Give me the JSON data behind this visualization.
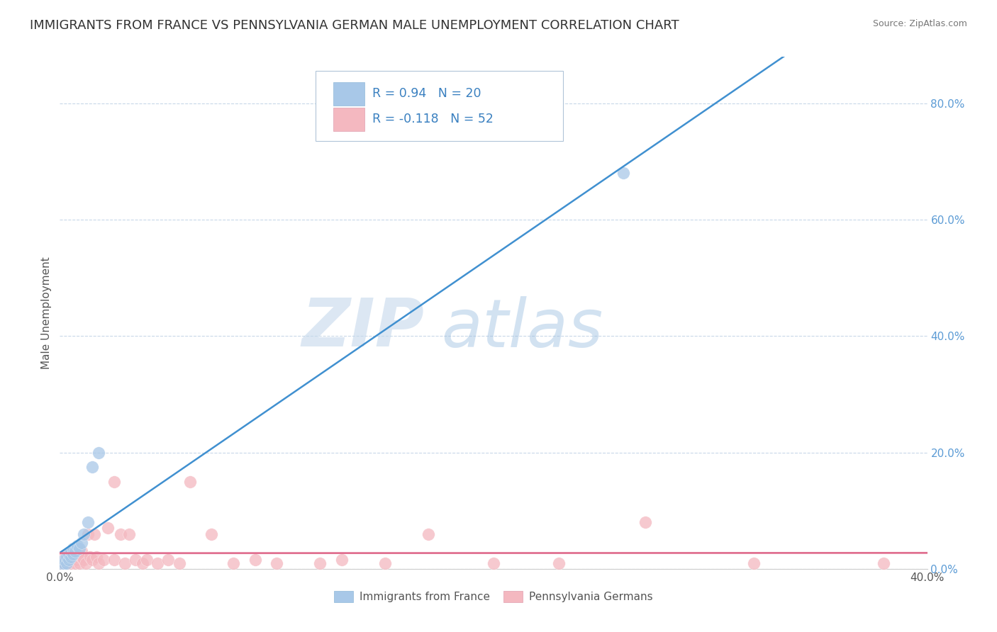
{
  "title": "IMMIGRANTS FROM FRANCE VS PENNSYLVANIA GERMAN MALE UNEMPLOYMENT CORRELATION CHART",
  "source": "Source: ZipAtlas.com",
  "ylabel": "Male Unemployment",
  "xlim": [
    0.0,
    0.4
  ],
  "ylim": [
    0.0,
    0.88
  ],
  "xtick_vals": [
    0.0,
    0.4
  ],
  "xticklabels": [
    "0.0%",
    "40.0%"
  ],
  "ytick_vals": [
    0.0,
    0.2,
    0.4,
    0.6,
    0.8
  ],
  "yticklabels_right": [
    "0.0%",
    "20.0%",
    "40.0%",
    "60.0%",
    "80.0%"
  ],
  "blue_R": 0.94,
  "blue_N": 20,
  "pink_R": -0.118,
  "pink_N": 52,
  "blue_color": "#a8c8e8",
  "pink_color": "#f4b8c0",
  "blue_line_color": "#4090d0",
  "pink_line_color": "#e07090",
  "watermark_zip": "ZIP",
  "watermark_atlas": "atlas",
  "legend_label_blue": "Immigrants from France",
  "legend_label_pink": "Pennsylvania Germans",
  "blue_scatter_x": [
    0.001,
    0.002,
    0.002,
    0.003,
    0.003,
    0.004,
    0.004,
    0.005,
    0.005,
    0.006,
    0.006,
    0.007,
    0.008,
    0.009,
    0.01,
    0.011,
    0.013,
    0.015,
    0.018,
    0.26
  ],
  "blue_scatter_y": [
    0.005,
    0.01,
    0.015,
    0.01,
    0.02,
    0.015,
    0.025,
    0.02,
    0.03,
    0.025,
    0.035,
    0.03,
    0.04,
    0.035,
    0.045,
    0.06,
    0.08,
    0.175,
    0.2,
    0.68
  ],
  "pink_scatter_x": [
    0.001,
    0.002,
    0.002,
    0.003,
    0.003,
    0.004,
    0.004,
    0.005,
    0.005,
    0.006,
    0.006,
    0.007,
    0.008,
    0.008,
    0.009,
    0.01,
    0.01,
    0.011,
    0.012,
    0.013,
    0.014,
    0.015,
    0.016,
    0.017,
    0.018,
    0.02,
    0.022,
    0.025,
    0.025,
    0.028,
    0.03,
    0.032,
    0.035,
    0.038,
    0.04,
    0.045,
    0.05,
    0.055,
    0.06,
    0.07,
    0.08,
    0.09,
    0.1,
    0.12,
    0.13,
    0.15,
    0.17,
    0.2,
    0.23,
    0.27,
    0.32,
    0.38
  ],
  "pink_scatter_y": [
    0.01,
    0.008,
    0.02,
    0.01,
    0.025,
    0.015,
    0.012,
    0.01,
    0.02,
    0.015,
    0.025,
    0.01,
    0.015,
    0.02,
    0.01,
    0.02,
    0.03,
    0.015,
    0.01,
    0.06,
    0.02,
    0.015,
    0.06,
    0.02,
    0.01,
    0.015,
    0.07,
    0.15,
    0.015,
    0.06,
    0.01,
    0.06,
    0.015,
    0.01,
    0.015,
    0.01,
    0.015,
    0.01,
    0.15,
    0.06,
    0.01,
    0.015,
    0.01,
    0.01,
    0.015,
    0.01,
    0.06,
    0.01,
    0.01,
    0.08,
    0.01,
    0.01
  ],
  "bg_color": "#ffffff",
  "grid_color": "#c8d8e8",
  "title_fontsize": 13,
  "axis_fontsize": 11,
  "tick_fontsize": 11
}
